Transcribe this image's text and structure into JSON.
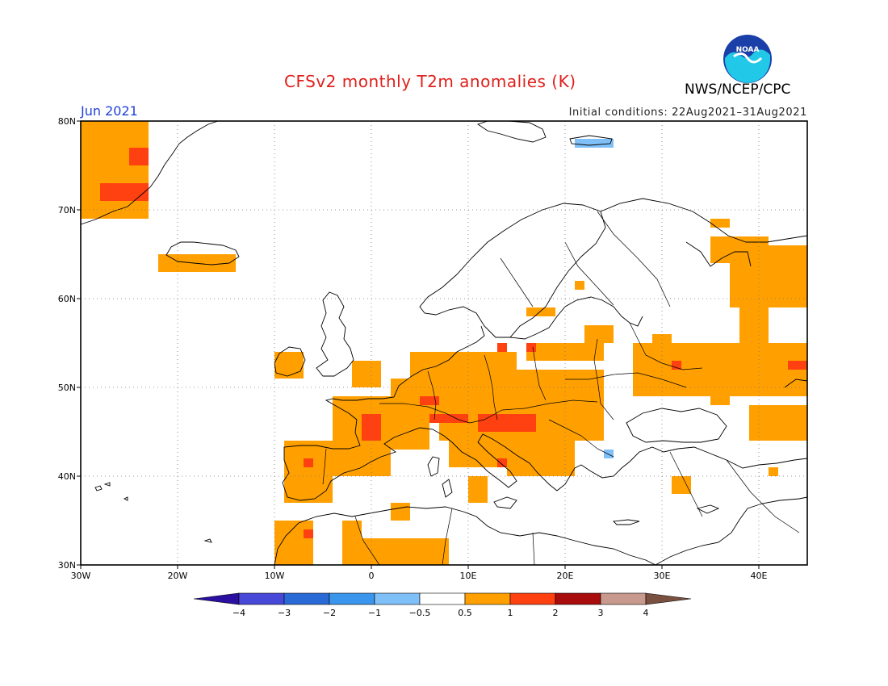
{
  "title": "CFSv2 monthly T2m anomalies (K)",
  "month": "Jun 2021",
  "org": "NWS/NCEP/CPC",
  "logo_text": "NOAA",
  "initial_conditions": "Initial conditions: 22Aug2021–31Aug2021",
  "map": {
    "lon_range": [
      -30,
      45
    ],
    "lat_range": [
      30,
      80
    ],
    "lon_ticks": [
      {
        "v": -30,
        "label": "30W"
      },
      {
        "v": -20,
        "label": "20W"
      },
      {
        "v": -10,
        "label": "10W"
      },
      {
        "v": 0,
        "label": "0"
      },
      {
        "v": 10,
        "label": "10E"
      },
      {
        "v": 20,
        "label": "20E"
      },
      {
        "v": 30,
        "label": "30E"
      },
      {
        "v": 40,
        "label": "40E"
      }
    ],
    "lat_ticks": [
      {
        "v": 30,
        "label": "30N"
      },
      {
        "v": 40,
        "label": "40N"
      },
      {
        "v": 50,
        "label": "50N"
      },
      {
        "v": 60,
        "label": "60N"
      },
      {
        "v": 70,
        "label": "70N"
      },
      {
        "v": 80,
        "label": "80N"
      }
    ],
    "grid": "dotted"
  },
  "colorbar": {
    "colors": [
      "#2a0fa0",
      "#4848d8",
      "#2a6ad6",
      "#3a95ec",
      "#80c0f8",
      "#ffffff",
      "#ffa000",
      "#ff4010",
      "#a80c0c",
      "#c89a8e",
      "#7a5040"
    ],
    "labels": [
      "−4",
      "−3",
      "−2",
      "−1",
      "−0.5",
      "0.5",
      "1",
      "2",
      "3",
      "4"
    ]
  },
  "anomaly_regions": [
    {
      "level": "0.5-1",
      "lon": [
        -30,
        -23
      ],
      "lat": [
        69,
        80
      ]
    },
    {
      "level": "1-2",
      "lon": [
        -28,
        -23
      ],
      "lat": [
        71,
        73
      ]
    },
    {
      "level": "1-2",
      "lon": [
        -25,
        -23
      ],
      "lat": [
        75,
        77
      ]
    },
    {
      "level": "0.5-1",
      "lon": [
        -22,
        -14
      ],
      "lat": [
        63,
        65
      ]
    },
    {
      "level": "0.5-1",
      "lon": [
        -10,
        -7
      ],
      "lat": [
        51,
        54
      ]
    },
    {
      "level": "0.5-1",
      "lon": [
        -2,
        1
      ],
      "lat": [
        50,
        53
      ]
    },
    {
      "level": "0.5-1",
      "lon": [
        -4,
        6
      ],
      "lat": [
        43,
        49
      ]
    },
    {
      "level": "0.5-1",
      "lon": [
        2,
        8
      ],
      "lat": [
        46,
        51
      ]
    },
    {
      "level": "1-2",
      "lon": [
        -1,
        1
      ],
      "lat": [
        44,
        47
      ]
    },
    {
      "level": "0.5-1",
      "lon": [
        7,
        24
      ],
      "lat": [
        44,
        52
      ]
    },
    {
      "level": "0.5-1",
      "lon": [
        4,
        15
      ],
      "lat": [
        51,
        54
      ]
    },
    {
      "level": "1-2",
      "lon": [
        11,
        17
      ],
      "lat": [
        45,
        47
      ]
    },
    {
      "level": "1-2",
      "lon": [
        6,
        10
      ],
      "lat": [
        46,
        47
      ]
    },
    {
      "level": "0.5-1",
      "lon": [
        8,
        16
      ],
      "lat": [
        41,
        45
      ]
    },
    {
      "level": "0.5-1",
      "lon": [
        14,
        21
      ],
      "lat": [
        40,
        44
      ]
    },
    {
      "level": "0.5-1",
      "lon": [
        -9,
        -4
      ],
      "lat": [
        37,
        44
      ]
    },
    {
      "level": "0.5-1",
      "lon": [
        -5,
        2
      ],
      "lat": [
        40,
        43
      ]
    },
    {
      "level": "0.5-1",
      "lon": [
        -10,
        -6
      ],
      "lat": [
        30,
        35
      ]
    },
    {
      "level": "0.5-1",
      "lon": [
        -3,
        8
      ],
      "lat": [
        30,
        33
      ]
    },
    {
      "level": "0.5-1",
      "lon": [
        -3,
        -1
      ],
      "lat": [
        33,
        35
      ]
    },
    {
      "level": "0.5-1",
      "lon": [
        2,
        4
      ],
      "lat": [
        35,
        37
      ]
    },
    {
      "level": "0.5-1",
      "lon": [
        10,
        12
      ],
      "lat": [
        37,
        40
      ]
    },
    {
      "level": "0.5-1",
      "lon": [
        16,
        24
      ],
      "lat": [
        53,
        55
      ]
    },
    {
      "level": "0.5-1",
      "lon": [
        22,
        25
      ],
      "lat": [
        55,
        57
      ]
    },
    {
      "level": "0.5-1",
      "lon": [
        16,
        19
      ],
      "lat": [
        58,
        59
      ]
    },
    {
      "level": "0.5-1",
      "lon": [
        21,
        22
      ],
      "lat": [
        61,
        62
      ]
    },
    {
      "level": "0.5-1",
      "lon": [
        27,
        45
      ],
      "lat": [
        49,
        55
      ]
    },
    {
      "level": "0.5-1",
      "lon": [
        29,
        31
      ],
      "lat": [
        55,
        56
      ]
    },
    {
      "level": "0.5-1",
      "lon": [
        39,
        45
      ],
      "lat": [
        44,
        48
      ]
    },
    {
      "level": "0.5-1",
      "lon": [
        38,
        41
      ],
      "lat": [
        55,
        59
      ]
    },
    {
      "level": "0.5-1",
      "lon": [
        37,
        45
      ],
      "lat": [
        59,
        66
      ]
    },
    {
      "level": "0.5-1",
      "lon": [
        35,
        41
      ],
      "lat": [
        64,
        67
      ]
    },
    {
      "level": "0.5-1",
      "lon": [
        35,
        37
      ],
      "lat": [
        68,
        69
      ]
    },
    {
      "level": "0.5-1",
      "lon": [
        35,
        37
      ],
      "lat": [
        48,
        49
      ]
    },
    {
      "level": "1-2",
      "lon": [
        43,
        45
      ],
      "lat": [
        52,
        53
      ]
    },
    {
      "level": "1-2",
      "lon": [
        31,
        32
      ],
      "lat": [
        52,
        53
      ]
    },
    {
      "level": "1-2",
      "lon": [
        5,
        7
      ],
      "lat": [
        48,
        49
      ]
    },
    {
      "level": "1-2",
      "lon": [
        13,
        14
      ],
      "lat": [
        54,
        55
      ]
    },
    {
      "level": "1-2",
      "lon": [
        16,
        17
      ],
      "lat": [
        54,
        55
      ]
    },
    {
      "level": "1-2",
      "lon": [
        13,
        14
      ],
      "lat": [
        41,
        42
      ]
    },
    {
      "level": "1-2",
      "lon": [
        -7,
        -6
      ],
      "lat": [
        33,
        34
      ]
    },
    {
      "level": "1-2",
      "lon": [
        -7,
        -6
      ],
      "lat": [
        41,
        42
      ]
    },
    {
      "level": "0.5-1",
      "lon": [
        41,
        42
      ],
      "lat": [
        40,
        41
      ]
    },
    {
      "level": "0.5-1",
      "lon": [
        31,
        33
      ],
      "lat": [
        38,
        40
      ]
    },
    {
      "level": "-1--0.5",
      "lon": [
        24,
        25
      ],
      "lat": [
        42,
        43
      ]
    },
    {
      "level": "-1--0.5",
      "lon": [
        21,
        25
      ],
      "lat": [
        77,
        78
      ]
    }
  ]
}
